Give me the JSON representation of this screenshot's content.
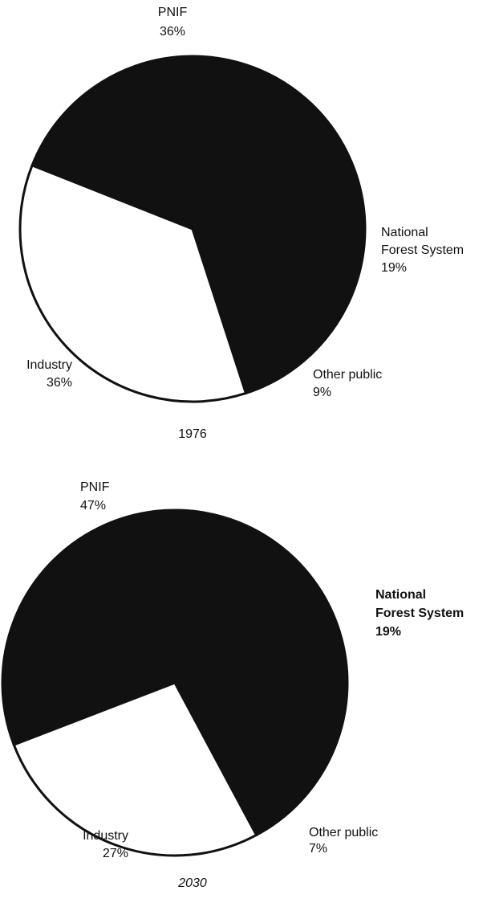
{
  "chart_data": [
    {
      "type": "pie",
      "title": "1976",
      "categories": [
        "PNIF",
        "National Forest System",
        "Other public",
        "Industry"
      ],
      "values": [
        36,
        19,
        9,
        36
      ],
      "value_labels": [
        "36%",
        "19%",
        "9%",
        "36%"
      ],
      "colors": [
        "#111111",
        "#111111",
        "#111111",
        "#ffffff"
      ]
    },
    {
      "type": "pie",
      "title": "2030",
      "categories": [
        "PNIF",
        "National Forest System",
        "Other public",
        "Industry"
      ],
      "values": [
        47,
        19,
        7,
        27
      ],
      "value_labels": [
        "47%",
        "19%",
        "7%",
        "27%"
      ],
      "colors": [
        "#111111",
        "#111111",
        "#111111",
        "#ffffff"
      ]
    }
  ]
}
